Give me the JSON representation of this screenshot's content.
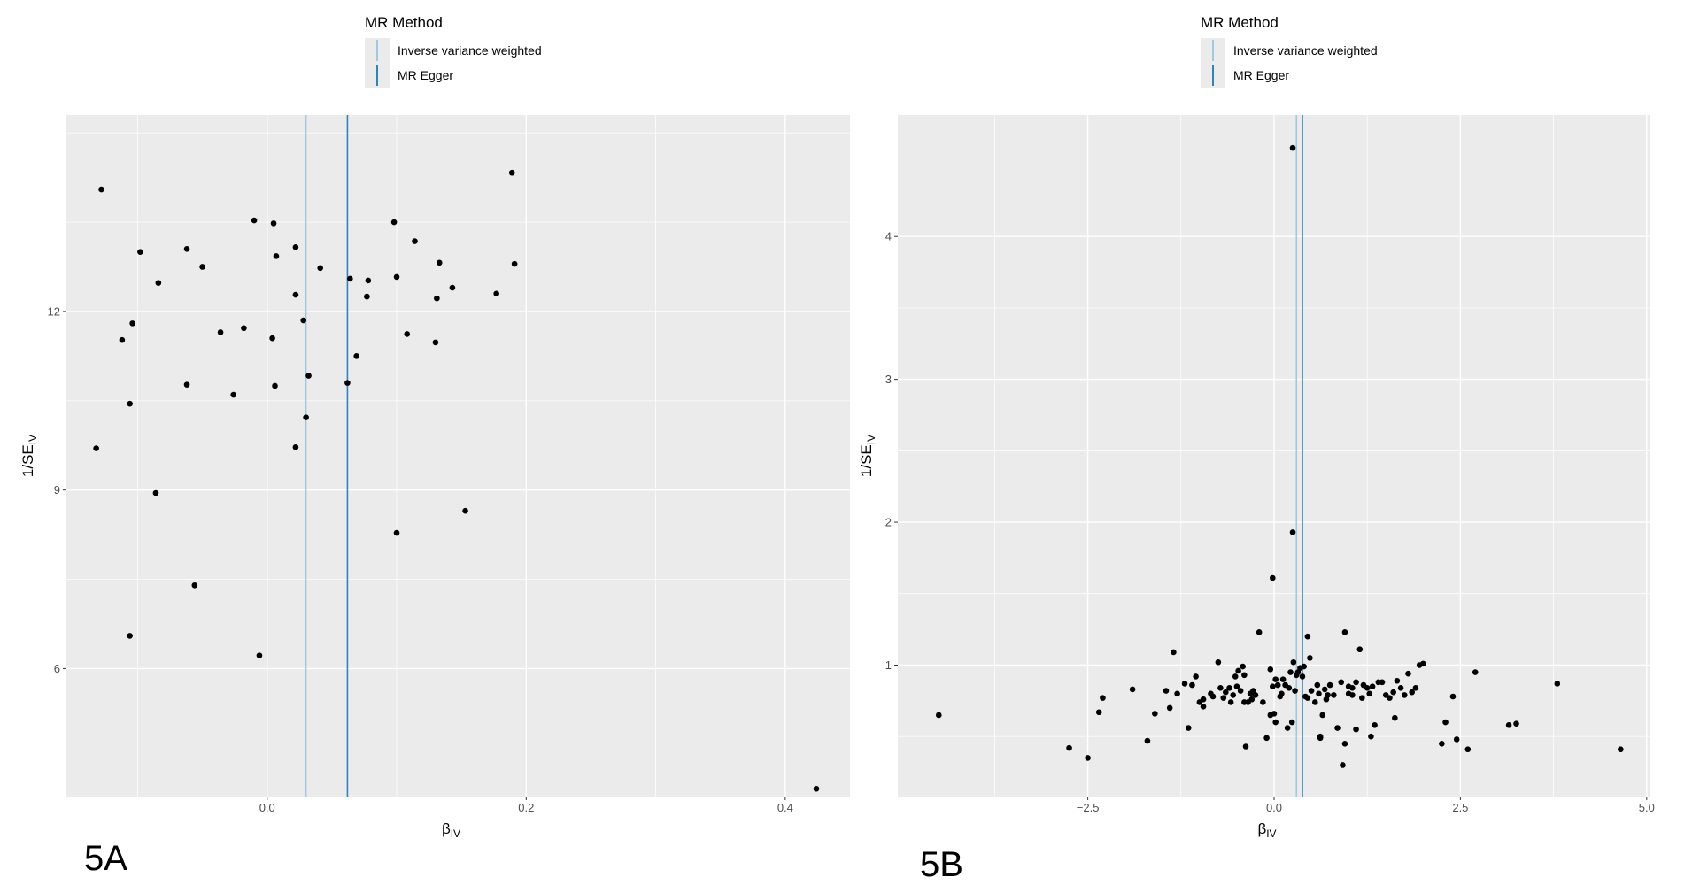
{
  "colors": {
    "panel_bg": "#ebebeb",
    "grid": "#ffffff",
    "ivw": "#9ecae1",
    "egger": "#3182bd",
    "point": "#000000"
  },
  "chart_data": [
    {
      "type": "scatter",
      "label": "5A",
      "legend_title": "MR Method",
      "legend": [
        "Inverse variance weighted",
        "MR Egger"
      ],
      "xlabel": "βIV",
      "ylabel": "1/SEIV",
      "xlim": [
        -0.155,
        0.45
      ],
      "ylim": [
        3.85,
        15.3
      ],
      "xticks": [
        0.0,
        0.2,
        0.4
      ],
      "xtick_labels": [
        "0.0",
        "0.2",
        "0.4"
      ],
      "yticks": [
        6,
        9,
        12
      ],
      "ytick_labels": [
        "6",
        "9",
        "12"
      ],
      "lines": [
        {
          "name": "Inverse variance weighted",
          "x": 0.03,
          "color": "#9ecae1"
        },
        {
          "name": "MR Egger",
          "x": 0.062,
          "color": "#3182bd"
        }
      ],
      "points": [
        [
          -0.128,
          14.05
        ],
        [
          -0.132,
          9.7
        ],
        [
          -0.112,
          11.52
        ],
        [
          -0.106,
          10.45
        ],
        [
          -0.104,
          11.8
        ],
        [
          -0.106,
          6.55
        ],
        [
          -0.098,
          13.0
        ],
        [
          -0.086,
          8.95
        ],
        [
          -0.084,
          12.48
        ],
        [
          -0.062,
          13.05
        ],
        [
          -0.062,
          10.77
        ],
        [
          -0.056,
          7.4
        ],
        [
          -0.05,
          12.75
        ],
        [
          -0.036,
          11.65
        ],
        [
          -0.026,
          10.6
        ],
        [
          -0.018,
          11.72
        ],
        [
          -0.01,
          13.53
        ],
        [
          -0.006,
          6.22
        ],
        [
          0.004,
          11.55
        ],
        [
          0.005,
          13.48
        ],
        [
          0.006,
          10.75
        ],
        [
          0.007,
          12.93
        ],
        [
          0.022,
          12.28
        ],
        [
          0.022,
          13.08
        ],
        [
          0.022,
          9.72
        ],
        [
          0.028,
          11.85
        ],
        [
          0.03,
          10.22
        ],
        [
          0.032,
          10.92
        ],
        [
          0.041,
          12.73
        ],
        [
          0.062,
          10.8
        ],
        [
          0.064,
          12.55
        ],
        [
          0.069,
          11.25
        ],
        [
          0.077,
          12.25
        ],
        [
          0.078,
          12.52
        ],
        [
          0.098,
          13.5
        ],
        [
          0.1,
          12.58
        ],
        [
          0.1,
          8.28
        ],
        [
          0.108,
          11.62
        ],
        [
          0.114,
          13.18
        ],
        [
          0.13,
          11.48
        ],
        [
          0.131,
          12.22
        ],
        [
          0.133,
          12.82
        ],
        [
          0.143,
          12.4
        ],
        [
          0.153,
          8.65
        ],
        [
          0.177,
          12.3
        ],
        [
          0.189,
          14.33
        ],
        [
          0.191,
          12.8
        ],
        [
          0.424,
          3.98
        ]
      ]
    },
    {
      "type": "scatter",
      "label": "5B",
      "legend_title": "MR Method",
      "legend": [
        "Inverse variance weighted",
        "MR Egger"
      ],
      "xlabel": "βIV",
      "ylabel": "1/SEIV",
      "xlim": [
        -5.05,
        5.05
      ],
      "ylim": [
        0.08,
        4.85
      ],
      "xticks": [
        -2.5,
        0.0,
        2.5,
        5.0
      ],
      "xtick_labels": [
        "−2.5",
        "0.0",
        "2.5",
        "5.0"
      ],
      "yticks": [
        1,
        2,
        3,
        4
      ],
      "ytick_labels": [
        "1",
        "2",
        "3",
        "4"
      ],
      "lines": [
        {
          "name": "Inverse variance weighted",
          "x": 0.3,
          "color": "#9ecae1"
        },
        {
          "name": "MR Egger",
          "x": 0.38,
          "color": "#3182bd"
        }
      ],
      "points": [
        [
          -4.5,
          0.65
        ],
        [
          -2.75,
          0.42
        ],
        [
          -2.5,
          0.35
        ],
        [
          -2.35,
          0.67
        ],
        [
          -2.3,
          0.77
        ],
        [
          -1.9,
          0.83
        ],
        [
          -1.7,
          0.47
        ],
        [
          -1.6,
          0.66
        ],
        [
          -1.45,
          0.82
        ],
        [
          -1.4,
          0.7
        ],
        [
          -1.35,
          1.09
        ],
        [
          -1.3,
          0.8
        ],
        [
          -1.2,
          0.87
        ],
        [
          -1.15,
          0.56
        ],
        [
          -1.1,
          0.86
        ],
        [
          -1.05,
          0.92
        ],
        [
          -1.0,
          0.74
        ],
        [
          -0.95,
          0.76
        ],
        [
          -0.95,
          0.71
        ],
        [
          -0.85,
          0.8
        ],
        [
          -0.82,
          0.78
        ],
        [
          -0.75,
          1.02
        ],
        [
          -0.72,
          0.84
        ],
        [
          -0.68,
          0.77
        ],
        [
          -0.65,
          0.81
        ],
        [
          -0.6,
          0.84
        ],
        [
          -0.58,
          0.74
        ],
        [
          -0.55,
          0.79
        ],
        [
          -0.52,
          0.92
        ],
        [
          -0.5,
          0.85
        ],
        [
          -0.48,
          0.96
        ],
        [
          -0.45,
          0.82
        ],
        [
          -0.42,
          0.99
        ],
        [
          -0.4,
          0.74
        ],
        [
          -0.4,
          0.93
        ],
        [
          -0.38,
          0.43
        ],
        [
          -0.35,
          0.74
        ],
        [
          -0.32,
          0.8
        ],
        [
          -0.3,
          0.76
        ],
        [
          -0.28,
          0.82
        ],
        [
          -0.25,
          0.79
        ],
        [
          -0.2,
          1.23
        ],
        [
          -0.15,
          0.74
        ],
        [
          -0.1,
          0.49
        ],
        [
          -0.05,
          0.97
        ],
        [
          -0.05,
          0.65
        ],
        [
          -0.02,
          0.85
        ],
        [
          -0.02,
          1.61
        ],
        [
          0.0,
          0.66
        ],
        [
          0.02,
          0.9
        ],
        [
          0.02,
          0.6
        ],
        [
          0.05,
          0.86
        ],
        [
          0.08,
          0.78
        ],
        [
          0.1,
          0.8
        ],
        [
          0.12,
          0.9
        ],
        [
          0.15,
          0.86
        ],
        [
          0.18,
          0.56
        ],
        [
          0.2,
          0.84
        ],
        [
          0.22,
          0.95
        ],
        [
          0.24,
          0.6
        ],
        [
          0.25,
          1.93
        ],
        [
          0.25,
          4.62
        ],
        [
          0.26,
          1.02
        ],
        [
          0.28,
          0.82
        ],
        [
          0.3,
          0.93
        ],
        [
          0.32,
          0.95
        ],
        [
          0.35,
          0.98
        ],
        [
          0.38,
          0.92
        ],
        [
          0.4,
          0.99
        ],
        [
          0.42,
          0.78
        ],
        [
          0.45,
          1.2
        ],
        [
          0.45,
          0.77
        ],
        [
          0.48,
          1.05
        ],
        [
          0.5,
          0.82
        ],
        [
          0.55,
          0.74
        ],
        [
          0.58,
          0.86
        ],
        [
          0.6,
          0.8
        ],
        [
          0.62,
          0.5
        ],
        [
          0.62,
          0.49
        ],
        [
          0.65,
          0.65
        ],
        [
          0.68,
          0.83
        ],
        [
          0.7,
          0.76
        ],
        [
          0.72,
          0.79
        ],
        [
          0.75,
          0.86
        ],
        [
          0.8,
          0.79
        ],
        [
          0.85,
          0.56
        ],
        [
          0.9,
          0.88
        ],
        [
          0.92,
          0.3
        ],
        [
          0.95,
          0.45
        ],
        [
          0.95,
          1.23
        ],
        [
          1.0,
          0.8
        ],
        [
          1.0,
          0.85
        ],
        [
          1.05,
          0.84
        ],
        [
          1.05,
          0.79
        ],
        [
          1.1,
          0.55
        ],
        [
          1.1,
          0.88
        ],
        [
          1.15,
          1.11
        ],
        [
          1.18,
          0.77
        ],
        [
          1.2,
          0.86
        ],
        [
          1.25,
          0.84
        ],
        [
          1.28,
          0.8
        ],
        [
          1.3,
          0.5
        ],
        [
          1.32,
          0.85
        ],
        [
          1.35,
          0.58
        ],
        [
          1.4,
          0.88
        ],
        [
          1.45,
          0.88
        ],
        [
          1.5,
          0.79
        ],
        [
          1.55,
          0.77
        ],
        [
          1.6,
          0.81
        ],
        [
          1.62,
          0.63
        ],
        [
          1.65,
          0.89
        ],
        [
          1.7,
          0.84
        ],
        [
          1.75,
          0.79
        ],
        [
          1.8,
          0.94
        ],
        [
          1.85,
          0.81
        ],
        [
          1.9,
          0.84
        ],
        [
          1.95,
          1.0
        ],
        [
          2.0,
          1.01
        ],
        [
          2.25,
          0.45
        ],
        [
          2.3,
          0.6
        ],
        [
          2.4,
          0.78
        ],
        [
          2.45,
          0.48
        ],
        [
          2.6,
          0.41
        ],
        [
          2.7,
          0.95
        ],
        [
          3.15,
          0.58
        ],
        [
          3.25,
          0.59
        ],
        [
          3.8,
          0.87
        ],
        [
          4.65,
          0.41
        ]
      ]
    }
  ]
}
